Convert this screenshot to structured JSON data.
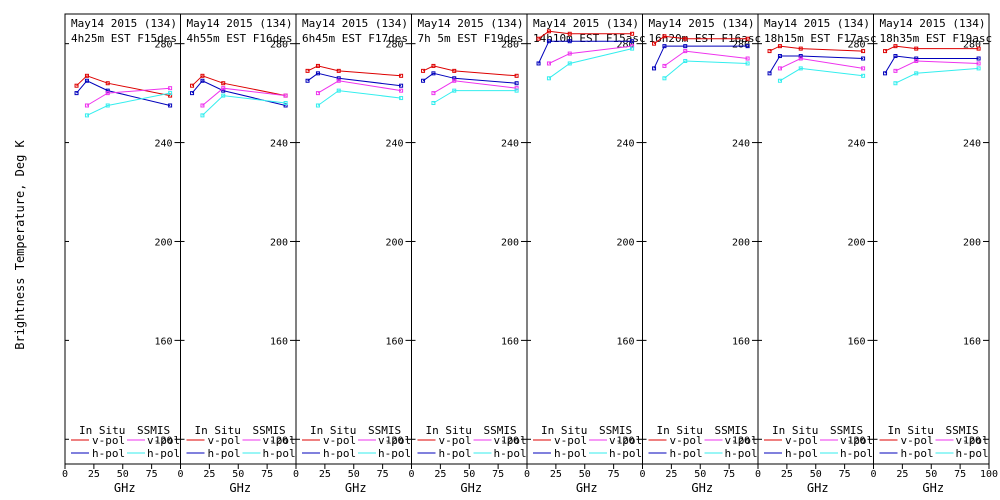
{
  "chart_data": {
    "type": "line",
    "ylabel": "Brightness Temperature, Deg K",
    "xlabel": "GHz",
    "xlim": [
      0,
      100
    ],
    "ylim": [
      110,
      292
    ],
    "x_ticks": [
      0,
      25,
      50,
      75,
      100
    ],
    "x_tick_labels": [
      "0",
      "25",
      "50",
      "75",
      "100"
    ],
    "y_ticks": [
      120,
      160,
      200,
      240,
      280
    ],
    "grid": false,
    "legend": {
      "in_situ_label": "In Situ",
      "ssmis_label": "SSMIS",
      "v_pol_label": "v-pol",
      "h_pol_label": "h-pol"
    },
    "colors": {
      "in_situ_v": "#dd0000",
      "in_situ_h": "#0000bb",
      "ssmis_v": "#ee33ee",
      "ssmis_h": "#33eeee"
    },
    "panels": [
      {
        "title1": "May14 2015 (134)",
        "title2": "4h25m  EST F15des",
        "series": [
          {
            "key": "in_situ_v",
            "x": [
              10,
              19,
              37,
              91
            ],
            "y": [
              263,
              267,
              264,
              259
            ]
          },
          {
            "key": "in_situ_h",
            "x": [
              10,
              19,
              37,
              91
            ],
            "y": [
              260,
              265,
              261,
              255
            ]
          },
          {
            "key": "ssmis_v",
            "x": [
              19,
              37,
              91
            ],
            "y": [
              255,
              260,
              262
            ]
          },
          {
            "key": "ssmis_h",
            "x": [
              19,
              37,
              91
            ],
            "y": [
              251,
              255,
              260
            ]
          }
        ]
      },
      {
        "title1": "May14 2015 (134)",
        "title2": "4h55m  EST F16des",
        "series": [
          {
            "key": "in_situ_v",
            "x": [
              10,
              19,
              37,
              91
            ],
            "y": [
              263,
              267,
              264,
              259
            ]
          },
          {
            "key": "in_situ_h",
            "x": [
              10,
              19,
              37,
              91
            ],
            "y": [
              260,
              265,
              261,
              255
            ]
          },
          {
            "key": "ssmis_v",
            "x": [
              19,
              37,
              91
            ],
            "y": [
              255,
              262,
              259
            ]
          },
          {
            "key": "ssmis_h",
            "x": [
              19,
              37,
              91
            ],
            "y": [
              251,
              259,
              256
            ]
          }
        ]
      },
      {
        "title1": "May14 2015 (134)",
        "title2": "6h45m  EST F17des",
        "series": [
          {
            "key": "in_situ_v",
            "x": [
              10,
              19,
              37,
              91
            ],
            "y": [
              269,
              271,
              269,
              267
            ]
          },
          {
            "key": "in_situ_h",
            "x": [
              10,
              19,
              37,
              91
            ],
            "y": [
              265,
              268,
              266,
              263
            ]
          },
          {
            "key": "ssmis_v",
            "x": [
              19,
              37,
              91
            ],
            "y": [
              260,
              265,
              261
            ]
          },
          {
            "key": "ssmis_h",
            "x": [
              19,
              37,
              91
            ],
            "y": [
              255,
              261,
              258
            ]
          }
        ]
      },
      {
        "title1": "May14 2015 (134)",
        "title2": "7h 5m  EST F19des",
        "series": [
          {
            "key": "in_situ_v",
            "x": [
              10,
              19,
              37,
              91
            ],
            "y": [
              269,
              271,
              269,
              267
            ]
          },
          {
            "key": "in_situ_h",
            "x": [
              10,
              19,
              37,
              91
            ],
            "y": [
              265,
              268,
              266,
              264
            ]
          },
          {
            "key": "ssmis_v",
            "x": [
              19,
              37,
              91
            ],
            "y": [
              260,
              265,
              262
            ]
          },
          {
            "key": "ssmis_h",
            "x": [
              19,
              37,
              91
            ],
            "y": [
              256,
              261,
              261
            ]
          }
        ]
      },
      {
        "title1": "May14 2015 (134)",
        "title2": "14h10m  EST F15asc",
        "series": [
          {
            "key": "in_situ_v",
            "x": [
              10,
              19,
              37,
              91
            ],
            "y": [
              282,
              285,
              284,
              284
            ]
          },
          {
            "key": "in_situ_h",
            "x": [
              10,
              19,
              37,
              91
            ],
            "y": [
              272,
              281,
              281,
              281
            ]
          },
          {
            "key": "ssmis_v",
            "x": [
              19,
              37,
              91
            ],
            "y": [
              272,
              276,
              279
            ]
          },
          {
            "key": "ssmis_h",
            "x": [
              19,
              37,
              91
            ],
            "y": [
              266,
              272,
              278
            ]
          }
        ]
      },
      {
        "title1": "May14 2015 (134)",
        "title2": "16h20m  EST F16asc",
        "series": [
          {
            "key": "in_situ_v",
            "x": [
              10,
              19,
              37,
              91
            ],
            "y": [
              280,
              283,
              282,
              282
            ]
          },
          {
            "key": "in_situ_h",
            "x": [
              10,
              19,
              37,
              91
            ],
            "y": [
              270,
              279,
              279,
              279
            ]
          },
          {
            "key": "ssmis_v",
            "x": [
              19,
              37,
              91
            ],
            "y": [
              271,
              277,
              274
            ]
          },
          {
            "key": "ssmis_h",
            "x": [
              19,
              37,
              91
            ],
            "y": [
              266,
              273,
              272
            ]
          }
        ]
      },
      {
        "title1": "May14 2015 (134)",
        "title2": "18h15m  EST F17asc",
        "series": [
          {
            "key": "in_situ_v",
            "x": [
              10,
              19,
              37,
              91
            ],
            "y": [
              277,
              279,
              278,
              277
            ]
          },
          {
            "key": "in_situ_h",
            "x": [
              10,
              19,
              37,
              91
            ],
            "y": [
              268,
              275,
              275,
              274
            ]
          },
          {
            "key": "ssmis_v",
            "x": [
              19,
              37,
              91
            ],
            "y": [
              270,
              274,
              270
            ]
          },
          {
            "key": "ssmis_h",
            "x": [
              19,
              37,
              91
            ],
            "y": [
              265,
              270,
              267
            ]
          }
        ]
      },
      {
        "title1": "May14 2015 (134)",
        "title2": "18h35m  EST F19asc",
        "series": [
          {
            "key": "in_situ_v",
            "x": [
              10,
              19,
              37,
              91
            ],
            "y": [
              277,
              279,
              278,
              278
            ]
          },
          {
            "key": "in_situ_h",
            "x": [
              10,
              19,
              37,
              91
            ],
            "y": [
              268,
              275,
              274,
              274
            ]
          },
          {
            "key": "ssmis_v",
            "x": [
              19,
              37,
              91
            ],
            "y": [
              269,
              273,
              272
            ]
          },
          {
            "key": "ssmis_h",
            "x": [
              19,
              37,
              91
            ],
            "y": [
              264,
              268,
              270
            ]
          }
        ]
      }
    ]
  }
}
